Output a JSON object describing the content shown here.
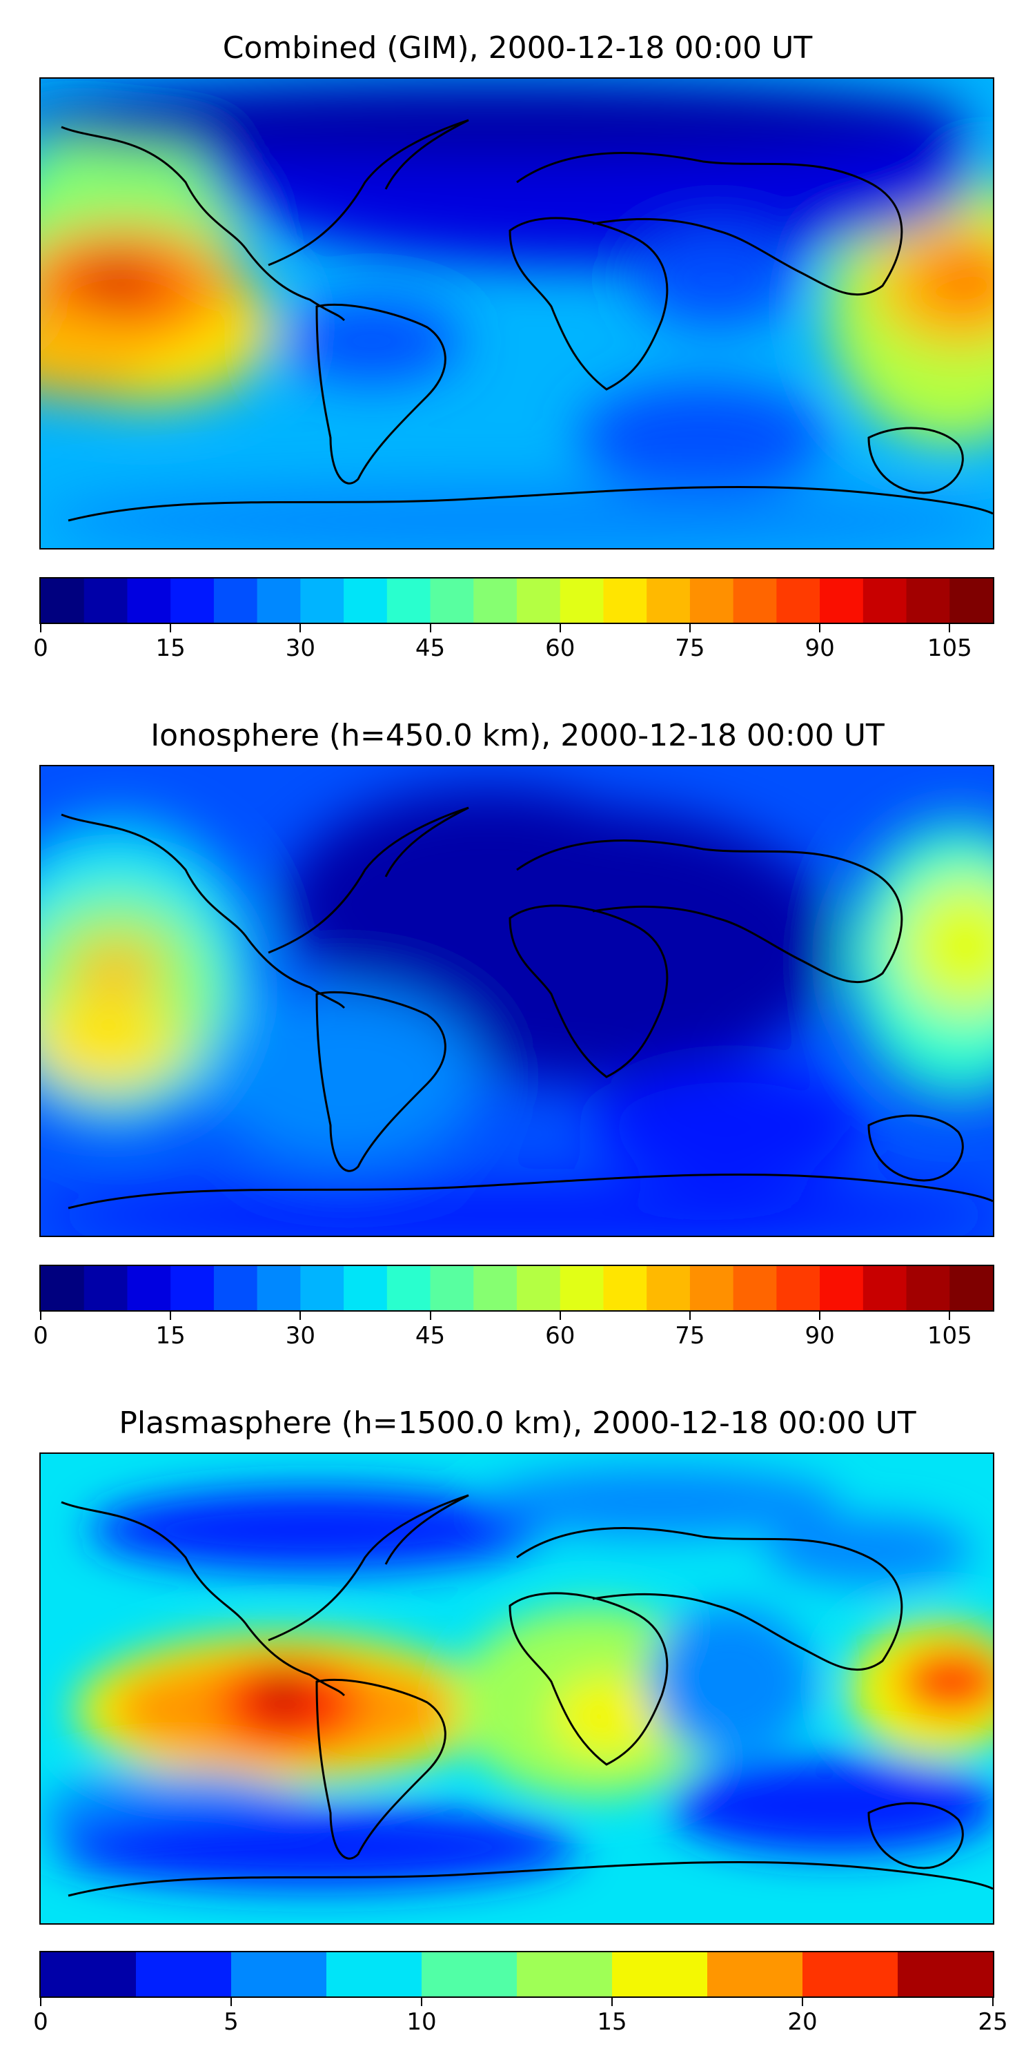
{
  "panels": [
    {
      "title": "Combined (GIM), 2000-12-18 00:00 UT",
      "colorbar": {
        "min": 0,
        "max": 110,
        "step": 5,
        "tick_labels": [
          "0",
          "15",
          "30",
          "45",
          "60",
          "75",
          "90",
          "105"
        ],
        "tick_values": [
          0,
          15,
          30,
          45,
          60,
          75,
          90,
          105
        ]
      }
    },
    {
      "title": "Ionosphere  (h=450.0 km), 2000-12-18 00:00 UT",
      "colorbar": {
        "min": 0,
        "max": 110,
        "step": 5,
        "tick_labels": [
          "0",
          "15",
          "30",
          "45",
          "60",
          "75",
          "90",
          "105"
        ],
        "tick_values": [
          0,
          15,
          30,
          45,
          60,
          75,
          90,
          105
        ]
      }
    },
    {
      "title": "Plasmasphere (h=1500.0 km), 2000-12-18 00:00 UT",
      "colorbar": {
        "min": 0,
        "max": 25,
        "step": 2.5,
        "tick_labels": [
          "0",
          "5",
          "10",
          "15",
          "20",
          "25"
        ],
        "tick_values": [
          0,
          5,
          10,
          15,
          20,
          25
        ]
      }
    }
  ],
  "colors": {
    "jet22": [
      "#00007f",
      "#0000a8",
      "#0000e0",
      "#0018ff",
      "#0050ff",
      "#0088ff",
      "#00b4ff",
      "#00e4f8",
      "#29ffce",
      "#58ffa0",
      "#86ff71",
      "#b4ff43",
      "#e1ff16",
      "#ffe500",
      "#ffb900",
      "#ff9000",
      "#ff6500",
      "#ff3b00",
      "#fa0f00",
      "#c80000",
      "#a20000",
      "#7f0000"
    ],
    "jet10": [
      "#0000a8",
      "#0020ff",
      "#0088ff",
      "#00e4f8",
      "#51ffa6",
      "#9fff56",
      "#f4f802",
      "#ff9600",
      "#ff3400",
      "#a80000"
    ],
    "coastline": "#000000"
  }
}
